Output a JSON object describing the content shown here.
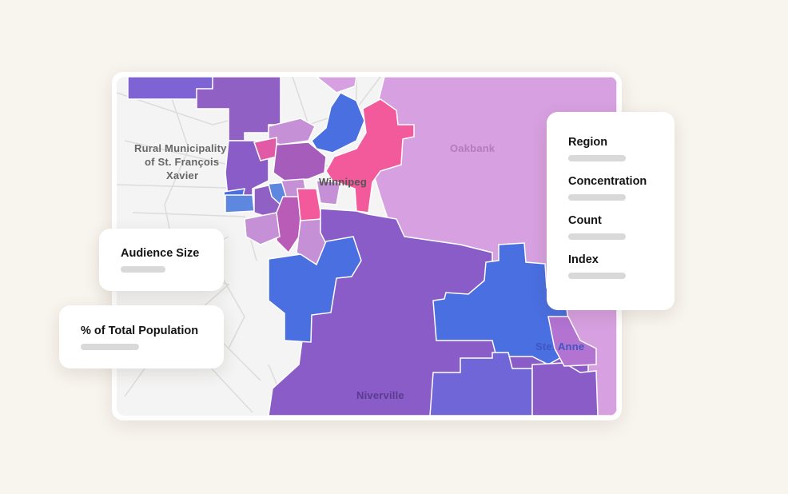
{
  "map": {
    "labels": {
      "rm_line1": "Rural Municipality",
      "rm_line2": "of St. François",
      "rm_line3": "Xavier",
      "winnipeg": "Winnipeg",
      "oakbank": "Oakbank",
      "ste_anne": "Ste. Anne",
      "niverville": "Niverville"
    },
    "colors": {
      "purple": "#8a5cc7",
      "blue": "#4a6fe0",
      "pink": "#f25a9c",
      "lavender": "#d7a0e0",
      "magenta": "#b95cb7",
      "light_purple": "#c590d6",
      "background": "#f8f4ee"
    }
  },
  "cards": {
    "audience_size": "Audience Size",
    "percent_total_population": "% of Total Population"
  },
  "legend": {
    "items": [
      "Region",
      "Concentration",
      "Count",
      "Index"
    ]
  }
}
